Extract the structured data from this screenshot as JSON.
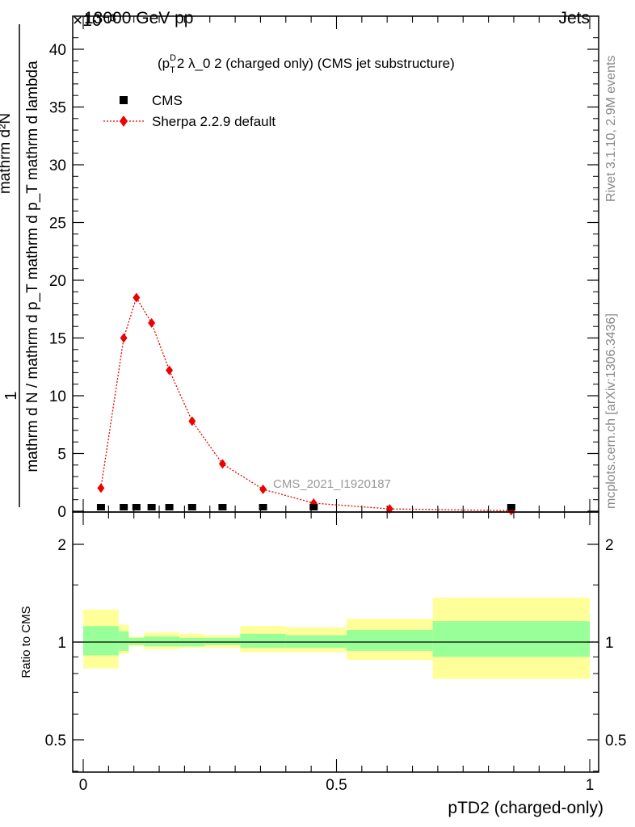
{
  "header": {
    "energy": "13000 GeV pp",
    "category": "Jets",
    "multiplier": "×10⁻³"
  },
  "side": {
    "rivet": "Rivet 3.1.10,  2.9M events",
    "mcplots": "mcplots.cern.ch [arXiv:1306.3436]"
  },
  "chart_data": {
    "type": "scatter",
    "title_base": "(p",
    "title_sup": "D",
    "title_sub": "T",
    "title_rest": "2 λ_0 2 (charged only) (CMS jet substructure)",
    "watermark": "CMS_2021_I1920187",
    "ylabel": {
      "numerator": "1",
      "denominator": "mathrm d N / mathrm d p_T mathrm d p_T mathrm d lambda",
      "display_num": "mathrm d²N"
    },
    "xlabel": "pTD2 (charged-only)",
    "xlim": [
      0,
      1
    ],
    "ylim": [
      0,
      0.042
    ],
    "x_ticks": [
      {
        "value": 0,
        "label": "0"
      },
      {
        "value": 0.5,
        "label": "0.5"
      },
      {
        "value": 1,
        "label": "1"
      }
    ],
    "y_ticks": [
      {
        "value": 0,
        "label": "0"
      },
      {
        "value": 0.005,
        "label": "5"
      },
      {
        "value": 0.01,
        "label": "10"
      },
      {
        "value": 0.015,
        "label": "15"
      },
      {
        "value": 0.02,
        "label": "20"
      },
      {
        "value": 0.025,
        "label": "25"
      },
      {
        "value": 0.03,
        "label": "30"
      },
      {
        "value": 0.035,
        "label": "35"
      },
      {
        "value": 0.04,
        "label": "40"
      }
    ],
    "legend": [
      {
        "name": "CMS",
        "marker": "square",
        "color": "#000000"
      },
      {
        "name": "Sherpa 2.2.9 default",
        "marker": "diamond",
        "color": "#ee0000"
      }
    ],
    "series": [
      {
        "name": "CMS",
        "x": [
          0.035,
          0.08,
          0.105,
          0.135,
          0.17,
          0.215,
          0.275,
          0.355,
          0.455,
          0.845
        ],
        "y": [
          0.0001,
          0.0001,
          0.0001,
          0.0001,
          0.0001,
          0.0001,
          0.0001,
          0.0001,
          0.0001,
          0.0001
        ]
      },
      {
        "name": "Sherpa 2.2.9 default",
        "x": [
          0.035,
          0.08,
          0.105,
          0.135,
          0.17,
          0.215,
          0.275,
          0.355,
          0.455,
          0.605,
          0.845
        ],
        "y": [
          0.002,
          0.015,
          0.0185,
          0.0163,
          0.0122,
          0.0078,
          0.0041,
          0.0019,
          0.0007,
          0.0002,
          5e-05
        ]
      }
    ],
    "ratio": {
      "ylabel": "Ratio to CMS",
      "ylim": [
        0.38,
        2.35
      ],
      "y_ticks": [
        {
          "value": 0.5,
          "label": "0.5"
        },
        {
          "value": 1,
          "label": "1"
        },
        {
          "value": 2,
          "label": "2"
        }
      ],
      "bins": [
        {
          "x0": 0.0,
          "x1": 0.07,
          "inner": [
            0.91,
            1.12
          ],
          "outer": [
            0.83,
            1.26
          ]
        },
        {
          "x0": 0.07,
          "x1": 0.09,
          "inner": [
            0.94,
            1.08
          ],
          "outer": [
            0.92,
            1.13
          ]
        },
        {
          "x0": 0.09,
          "x1": 0.12,
          "inner": [
            0.98,
            1.03
          ],
          "outer": [
            0.97,
            1.04
          ]
        },
        {
          "x0": 0.12,
          "x1": 0.15,
          "inner": [
            0.97,
            1.04
          ],
          "outer": [
            0.95,
            1.07
          ]
        },
        {
          "x0": 0.15,
          "x1": 0.19,
          "inner": [
            0.97,
            1.04
          ],
          "outer": [
            0.95,
            1.07
          ]
        },
        {
          "x0": 0.19,
          "x1": 0.24,
          "inner": [
            0.97,
            1.03
          ],
          "outer": [
            0.96,
            1.06
          ]
        },
        {
          "x0": 0.24,
          "x1": 0.31,
          "inner": [
            0.98,
            1.03
          ],
          "outer": [
            0.96,
            1.05
          ]
        },
        {
          "x0": 0.31,
          "x1": 0.4,
          "inner": [
            0.96,
            1.06
          ],
          "outer": [
            0.93,
            1.12
          ]
        },
        {
          "x0": 0.4,
          "x1": 0.52,
          "inner": [
            0.96,
            1.05
          ],
          "outer": [
            0.93,
            1.11
          ]
        },
        {
          "x0": 0.52,
          "x1": 0.69,
          "inner": [
            0.94,
            1.09
          ],
          "outer": [
            0.88,
            1.18
          ]
        },
        {
          "x0": 0.69,
          "x1": 1.0,
          "inner": [
            0.9,
            1.16
          ],
          "outer": [
            0.77,
            1.37
          ]
        }
      ]
    },
    "colors": {
      "inner_band": "#99ff99",
      "outer_band": "#ffff99",
      "model": "#ee0000",
      "data": "#000000"
    }
  }
}
